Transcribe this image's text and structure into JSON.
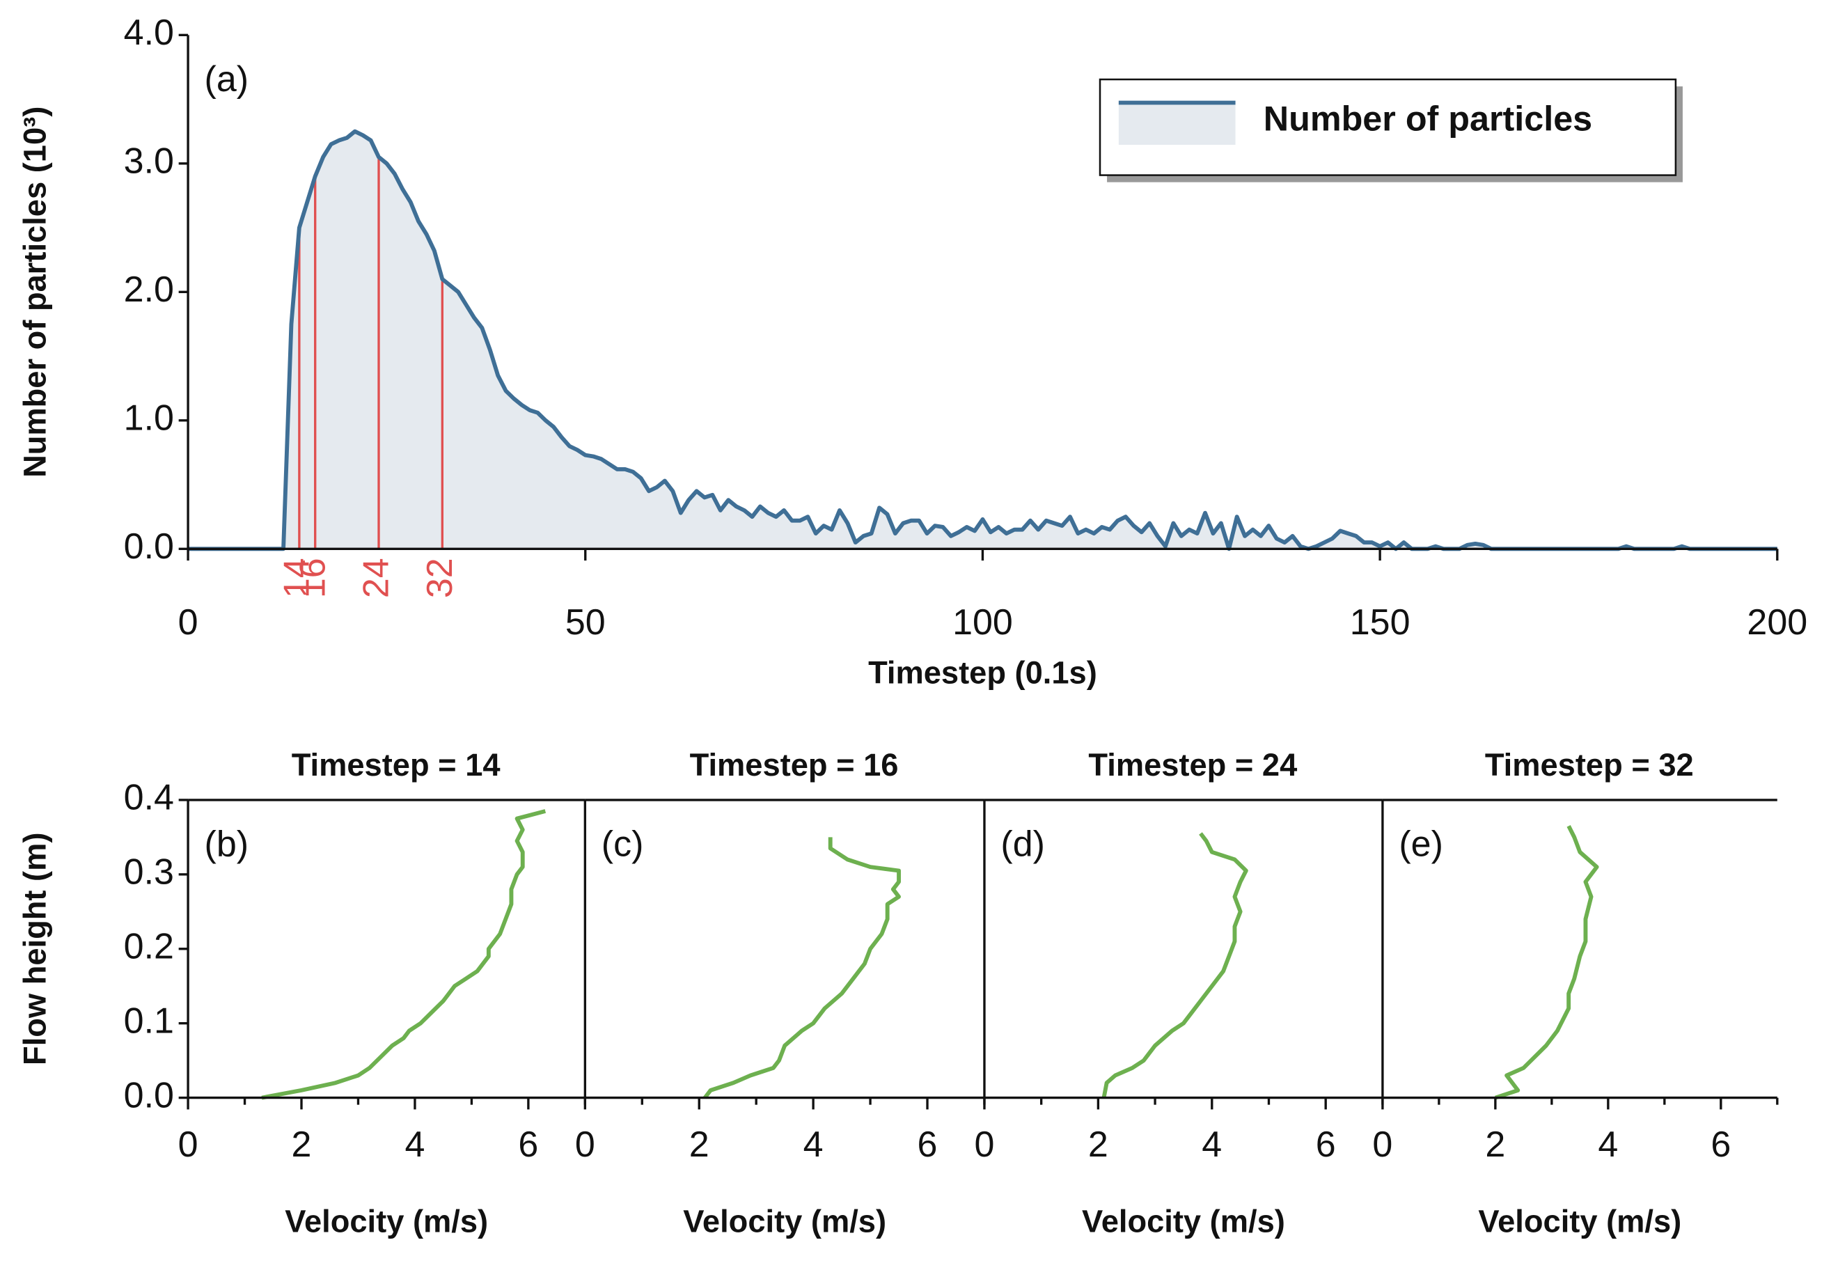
{
  "chart_data": [
    {
      "type": "area",
      "annotation": "(a)",
      "xlabel": "Timestep (0.1s)",
      "ylabel": "Number of particles (10³)",
      "x": [
        0,
        1,
        2,
        3,
        4,
        5,
        6,
        7,
        8,
        9,
        10,
        11,
        12,
        13,
        14,
        15,
        16,
        17,
        18,
        19,
        20,
        21,
        22,
        23,
        24,
        25,
        26,
        27,
        28,
        29,
        30,
        31,
        32,
        33,
        34,
        35,
        36,
        37,
        38,
        39,
        40,
        41,
        42,
        43,
        44,
        45,
        46,
        47,
        48,
        49,
        50,
        51,
        52,
        53,
        54,
        55,
        56,
        57,
        58,
        59,
        60,
        61,
        62,
        63,
        64,
        65,
        66,
        67,
        68,
        69,
        70,
        71,
        72,
        73,
        74,
        75,
        76,
        77,
        78,
        79,
        80,
        81,
        82,
        83,
        84,
        85,
        86,
        87,
        88,
        89,
        90,
        91,
        92,
        93,
        94,
        95,
        96,
        97,
        98,
        99,
        100,
        101,
        102,
        103,
        104,
        105,
        106,
        107,
        108,
        109,
        110,
        111,
        112,
        113,
        114,
        115,
        116,
        117,
        118,
        119,
        120,
        121,
        122,
        123,
        124,
        125,
        126,
        127,
        128,
        129,
        130,
        131,
        132,
        133,
        134,
        135,
        136,
        137,
        138,
        139,
        140,
        141,
        142,
        143,
        144,
        145,
        146,
        147,
        148,
        149,
        150,
        151,
        152,
        153,
        154,
        155,
        156,
        157,
        158,
        159,
        160,
        161,
        162,
        163,
        164,
        165,
        166,
        167,
        168,
        169,
        170,
        171,
        172,
        173,
        174,
        175,
        176,
        177,
        178,
        179,
        180,
        181,
        182,
        183,
        184,
        185,
        186,
        187,
        188,
        189,
        190,
        191,
        192,
        193,
        194,
        195,
        196,
        197,
        198,
        199,
        200
      ],
      "series": [
        {
          "name": "Number of particles",
          "color": "#3f6f96",
          "fill": "#e5eaef",
          "values": [
            0,
            0,
            0,
            0,
            0,
            0,
            0,
            0,
            0,
            0,
            0,
            0,
            0,
            1.75,
            2.5,
            2.7,
            2.9,
            3.05,
            3.15,
            3.18,
            3.2,
            3.25,
            3.22,
            3.18,
            3.05,
            3.0,
            2.92,
            2.8,
            2.7,
            2.55,
            2.45,
            2.32,
            2.1,
            2.05,
            2.0,
            1.9,
            1.8,
            1.72,
            1.55,
            1.35,
            1.23,
            1.17,
            1.12,
            1.08,
            1.06,
            1.0,
            0.95,
            0.87,
            0.8,
            0.77,
            0.73,
            0.72,
            0.7,
            0.66,
            0.62,
            0.62,
            0.6,
            0.55,
            0.45,
            0.48,
            0.53,
            0.45,
            0.28,
            0.38,
            0.45,
            0.4,
            0.42,
            0.3,
            0.38,
            0.33,
            0.3,
            0.25,
            0.33,
            0.28,
            0.25,
            0.3,
            0.22,
            0.22,
            0.25,
            0.12,
            0.18,
            0.15,
            0.3,
            0.2,
            0.05,
            0.1,
            0.12,
            0.32,
            0.27,
            0.12,
            0.2,
            0.22,
            0.22,
            0.12,
            0.18,
            0.17,
            0.1,
            0.13,
            0.17,
            0.14,
            0.23,
            0.13,
            0.17,
            0.12,
            0.15,
            0.15,
            0.22,
            0.15,
            0.22,
            0.2,
            0.18,
            0.25,
            0.12,
            0.15,
            0.12,
            0.17,
            0.15,
            0.22,
            0.25,
            0.18,
            0.13,
            0.2,
            0.1,
            0.02,
            0.2,
            0.1,
            0.15,
            0.12,
            0.28,
            0.12,
            0.2,
            0,
            0.25,
            0.1,
            0.15,
            0.1,
            0.18,
            0.08,
            0.05,
            0.1,
            0.02,
            0,
            0.02,
            0.05,
            0.08,
            0.14,
            0.12,
            0.1,
            0.05,
            0.05,
            0.02,
            0.05,
            0,
            0.05,
            0,
            0,
            0,
            0.02,
            0,
            0,
            0,
            0.03,
            0.04,
            0.03,
            0,
            0,
            0,
            0,
            0,
            0,
            0,
            0,
            0,
            0,
            0,
            0,
            0,
            0,
            0,
            0,
            0,
            0.02,
            0,
            0,
            0,
            0,
            0,
            0,
            0.02,
            0,
            0,
            0,
            0,
            0,
            0,
            0,
            0,
            0,
            0,
            0,
            0
          ]
        }
      ],
      "markers": [
        14,
        16,
        24,
        32
      ],
      "marker_color": "#e05050",
      "xlim": [
        0,
        200
      ],
      "xticks": [
        0,
        50,
        100,
        150,
        200
      ],
      "ylim": [
        0,
        4
      ],
      "yticks": [
        {
          "value": 0,
          "label": "0.0"
        },
        {
          "value": 1,
          "label": "1.0"
        },
        {
          "value": 2,
          "label": "2.0"
        },
        {
          "value": 3,
          "label": "3.0"
        },
        {
          "value": 4,
          "label": "4.0"
        }
      ],
      "legend": "upper right"
    },
    {
      "type": "line",
      "title": "Timestep = 14",
      "annotation": "(b)",
      "xlabel": "Velocity (m/s)",
      "ylabel": "Flow height (m)",
      "series": [
        {
          "color": "#6db04f",
          "x": [
            1.3,
            2.0,
            2.6,
            3.0,
            3.2,
            3.4,
            3.6,
            3.8,
            3.9,
            4.1,
            4.3,
            4.5,
            4.7,
            4.9,
            5.1,
            5.3,
            5.3,
            5.5,
            5.6,
            5.7,
            5.7,
            5.8,
            5.9,
            5.9,
            5.8,
            5.9,
            5.8,
            6.3
          ],
          "values": [
            0,
            0.01,
            0.02,
            0.03,
            0.04,
            0.055,
            0.07,
            0.08,
            0.09,
            0.1,
            0.115,
            0.13,
            0.15,
            0.16,
            0.17,
            0.19,
            0.2,
            0.22,
            0.24,
            0.26,
            0.28,
            0.3,
            0.31,
            0.33,
            0.345,
            0.36,
            0.375,
            0.385
          ]
        }
      ],
      "xlim": [
        0,
        7
      ],
      "xticks": [
        0,
        2,
        4,
        6
      ],
      "xminorticks": [
        1,
        3,
        5,
        7
      ],
      "ylim": [
        0,
        0.4
      ],
      "yticks": [
        {
          "value": 0,
          "label": "0.0"
        },
        0.1,
        0.2,
        0.3,
        0.4
      ]
    },
    {
      "type": "line",
      "title": "Timestep = 16",
      "annotation": "(c)",
      "xlabel": "Velocity (m/s)",
      "series": [
        {
          "color": "#6db04f",
          "x": [
            2.1,
            2.2,
            2.6,
            2.9,
            3.3,
            3.4,
            3.5,
            3.8,
            4.0,
            4.2,
            4.5,
            4.7,
            4.9,
            5.0,
            5.2,
            5.3,
            5.3,
            5.5,
            5.4,
            5.5,
            5.5,
            5.0,
            4.6,
            4.3,
            4.3
          ],
          "values": [
            0,
            0.01,
            0.02,
            0.03,
            0.04,
            0.05,
            0.07,
            0.09,
            0.1,
            0.12,
            0.14,
            0.16,
            0.18,
            0.2,
            0.22,
            0.24,
            0.26,
            0.27,
            0.28,
            0.29,
            0.305,
            0.31,
            0.32,
            0.335,
            0.35
          ]
        }
      ],
      "xlim": [
        0,
        7
      ],
      "xticks": [
        0,
        2,
        4,
        6
      ],
      "xminorticks": [
        1,
        3,
        5,
        7
      ],
      "ylim": [
        0,
        0.4
      ]
    },
    {
      "type": "line",
      "title": "Timestep = 24",
      "annotation": "(d)",
      "xlabel": "Velocity (m/s)",
      "series": [
        {
          "color": "#6db04f",
          "x": [
            2.1,
            2.15,
            2.3,
            2.6,
            2.8,
            3.0,
            3.3,
            3.5,
            3.8,
            4.0,
            4.2,
            4.3,
            4.4,
            4.4,
            4.5,
            4.4,
            4.5,
            4.6,
            4.4,
            4.0,
            3.9,
            3.8
          ],
          "values": [
            0,
            0.02,
            0.03,
            0.04,
            0.05,
            0.07,
            0.09,
            0.1,
            0.13,
            0.15,
            0.17,
            0.19,
            0.21,
            0.23,
            0.25,
            0.27,
            0.29,
            0.305,
            0.32,
            0.33,
            0.345,
            0.355
          ]
        }
      ],
      "xlim": [
        0,
        7
      ],
      "xticks": [
        0,
        2,
        4,
        6
      ],
      "xminorticks": [
        1,
        3,
        5,
        7
      ],
      "ylim": [
        0,
        0.4
      ]
    },
    {
      "type": "line",
      "title": "Timestep = 32",
      "annotation": "(e)",
      "xlabel": "Velocity (m/s)",
      "series": [
        {
          "color": "#6db04f",
          "x": [
            2.0,
            2.4,
            2.2,
            2.5,
            2.9,
            3.1,
            3.3,
            3.3,
            3.4,
            3.5,
            3.6,
            3.6,
            3.7,
            3.6,
            3.8,
            3.5,
            3.4,
            3.3
          ],
          "values": [
            0,
            0.01,
            0.03,
            0.04,
            0.07,
            0.09,
            0.12,
            0.14,
            0.16,
            0.19,
            0.21,
            0.24,
            0.27,
            0.29,
            0.31,
            0.33,
            0.35,
            0.365
          ]
        }
      ],
      "xlim": [
        0,
        7
      ],
      "xticks": [
        0,
        2,
        4,
        6
      ],
      "xminorticks": [
        1,
        3,
        5,
        7
      ],
      "ylim": [
        0,
        0.4
      ]
    }
  ]
}
